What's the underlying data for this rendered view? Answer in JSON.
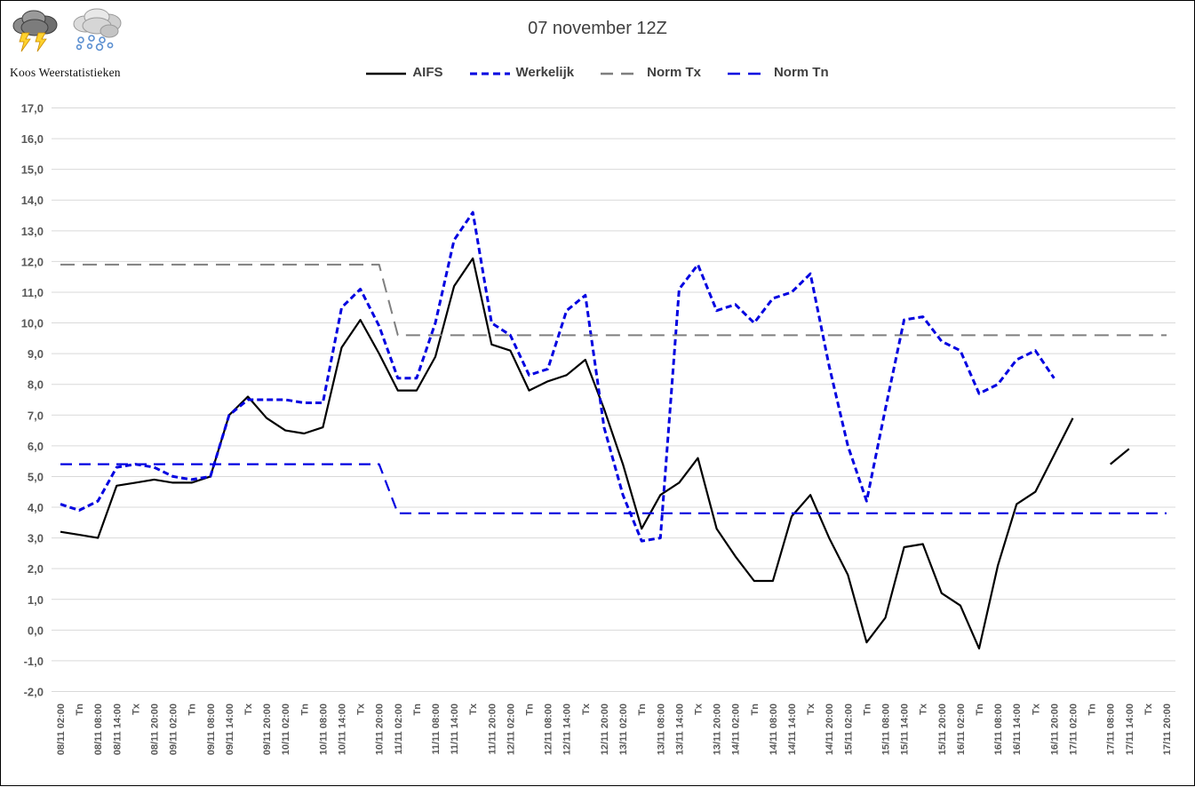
{
  "branding": {
    "name": "Koos Weerstatistieken",
    "icons": [
      "thunderstorm-cloud-icon",
      "snow-shower-cloud-icon"
    ]
  },
  "title": "07 november 12Z",
  "legend": [
    {
      "label": "AIFS",
      "color": "#000000",
      "style": "solid"
    },
    {
      "label": "Werkelijk",
      "color": "#0000E0",
      "style": "short-dash"
    },
    {
      "label": "Norm Tx",
      "color": "#7F7F7F",
      "style": "long-dash"
    },
    {
      "label": "Norm Tn",
      "color": "#0000E0",
      "style": "long-dash"
    }
  ],
  "axes": {
    "y_tick_labels": [
      "17,0",
      "16,0",
      "15,0",
      "14,0",
      "13,0",
      "12,0",
      "11,0",
      "10,0",
      "9,0",
      "8,0",
      "7,0",
      "6,0",
      "5,0",
      "4,0",
      "3,0",
      "2,0",
      "1,0",
      "0,0",
      "-1,0",
      "-2,0"
    ],
    "grid": true,
    "gridline_color": "#D9D9D9",
    "tick_label_color": "#595959"
  },
  "chart_data": {
    "type": "line",
    "title": "07 november 12Z",
    "xlabel": "",
    "ylabel": "",
    "ylim": [
      -2.0,
      17.0
    ],
    "y_step": 1.0,
    "grid": true,
    "legend_position": "top",
    "categories": [
      "08/11 02:00",
      "Tn",
      "08/11 08:00",
      "08/11 14:00",
      "Tx",
      "08/11 20:00",
      "09/11 02:00",
      "Tn",
      "09/11 08:00",
      "09/11 14:00",
      "Tx",
      "09/11 20:00",
      "10/11 02:00",
      "Tn",
      "10/11 08:00",
      "10/11 14:00",
      "Tx",
      "10/11 20:00",
      "11/11 02:00",
      "Tn",
      "11/11 08:00",
      "11/11 14:00",
      "Tx",
      "11/11 20:00",
      "12/11 02:00",
      "Tn",
      "12/11 08:00",
      "12/11 14:00",
      "Tx",
      "12/11 20:00",
      "13/11 02:00",
      "Tn",
      "13/11 08:00",
      "13/11 14:00",
      "Tx",
      "13/11 20:00",
      "14/11 02:00",
      "Tn",
      "14/11 08:00",
      "14/11 14:00",
      "Tx",
      "14/11 20:00",
      "15/11 02:00",
      "Tn",
      "15/11 08:00",
      "15/11 14:00",
      "Tx",
      "15/11 20:00",
      "16/11 02:00",
      "Tn",
      "16/11 08:00",
      "16/11 14:00",
      "Tx",
      "16/11 20:00",
      "17/11 02:00",
      "Tn",
      "17/11 08:00",
      "17/11 14:00",
      "Tx",
      "17/11 20:00"
    ],
    "series": [
      {
        "name": "AIFS",
        "color": "#000000",
        "dash": null,
        "width": 2.2,
        "values": [
          3.2,
          3.1,
          3.0,
          4.7,
          4.8,
          4.9,
          4.8,
          4.8,
          5.0,
          7.0,
          7.6,
          6.9,
          6.5,
          6.4,
          6.6,
          9.2,
          10.1,
          9.0,
          7.8,
          7.8,
          8.9,
          11.2,
          12.1,
          9.3,
          9.1,
          7.8,
          8.1,
          8.3,
          8.8,
          7.2,
          5.4,
          3.3,
          4.4,
          4.8,
          5.6,
          3.3,
          2.4,
          1.6,
          1.6,
          3.7,
          4.4,
          3.0,
          1.8,
          -0.4,
          0.4,
          2.7,
          2.8,
          1.2,
          0.8,
          -0.6,
          2.1,
          4.1,
          4.5,
          5.7,
          6.9,
          null,
          5.4,
          5.9,
          null,
          null
        ]
      },
      {
        "name": "Werkelijk",
        "color": "#0000E0",
        "dash": [
          7,
          4
        ],
        "width": 3,
        "values": [
          4.1,
          3.9,
          4.2,
          5.3,
          5.4,
          5.3,
          5.0,
          4.9,
          5.0,
          7.0,
          7.5,
          7.5,
          7.5,
          7.4,
          7.4,
          10.5,
          11.1,
          9.9,
          8.2,
          8.2,
          10.0,
          12.7,
          13.6,
          10.0,
          9.6,
          8.3,
          8.5,
          10.4,
          10.9,
          6.6,
          4.4,
          2.9,
          3.0,
          11.1,
          11.9,
          10.4,
          10.6,
          10.0,
          10.8,
          11.0,
          11.6,
          8.6,
          6.0,
          4.2,
          7.2,
          10.1,
          10.2,
          9.4,
          9.1,
          7.7,
          8.0,
          8.8,
          9.1,
          8.2,
          null,
          null,
          null,
          null,
          null,
          null
        ]
      },
      {
        "name": "Norm Tx",
        "color": "#7F7F7F",
        "dash": [
          16,
          9
        ],
        "width": 2,
        "values": [
          11.9,
          11.9,
          11.9,
          11.9,
          11.9,
          11.9,
          11.9,
          11.9,
          11.9,
          11.9,
          11.9,
          11.9,
          11.9,
          11.9,
          11.9,
          11.9,
          11.9,
          11.9,
          9.6,
          9.6,
          9.6,
          9.6,
          9.6,
          9.6,
          9.6,
          9.6,
          9.6,
          9.6,
          9.6,
          9.6,
          9.6,
          9.6,
          9.6,
          9.6,
          9.6,
          9.6,
          9.6,
          9.6,
          9.6,
          9.6,
          9.6,
          9.6,
          9.6,
          9.6,
          9.6,
          9.6,
          9.6,
          9.6,
          9.6,
          9.6,
          9.6,
          9.6,
          9.6,
          9.6,
          9.6,
          9.6,
          9.6,
          9.6,
          9.6,
          9.6
        ]
      },
      {
        "name": "Norm Tn",
        "color": "#0000E0",
        "dash": [
          13,
          8
        ],
        "width": 2.2,
        "values": [
          5.4,
          5.4,
          5.4,
          5.4,
          5.4,
          5.4,
          5.4,
          5.4,
          5.4,
          5.4,
          5.4,
          5.4,
          5.4,
          5.4,
          5.4,
          5.4,
          5.4,
          5.4,
          3.8,
          3.8,
          3.8,
          3.8,
          3.8,
          3.8,
          3.8,
          3.8,
          3.8,
          3.8,
          3.8,
          3.8,
          3.8,
          3.8,
          3.8,
          3.8,
          3.8,
          3.8,
          3.8,
          3.8,
          3.8,
          3.8,
          3.8,
          3.8,
          3.8,
          3.8,
          3.8,
          3.8,
          3.8,
          3.8,
          3.8,
          3.8,
          3.8,
          3.8,
          3.8,
          3.8,
          3.8,
          3.8,
          3.8,
          3.8,
          3.8,
          3.8
        ]
      }
    ]
  }
}
